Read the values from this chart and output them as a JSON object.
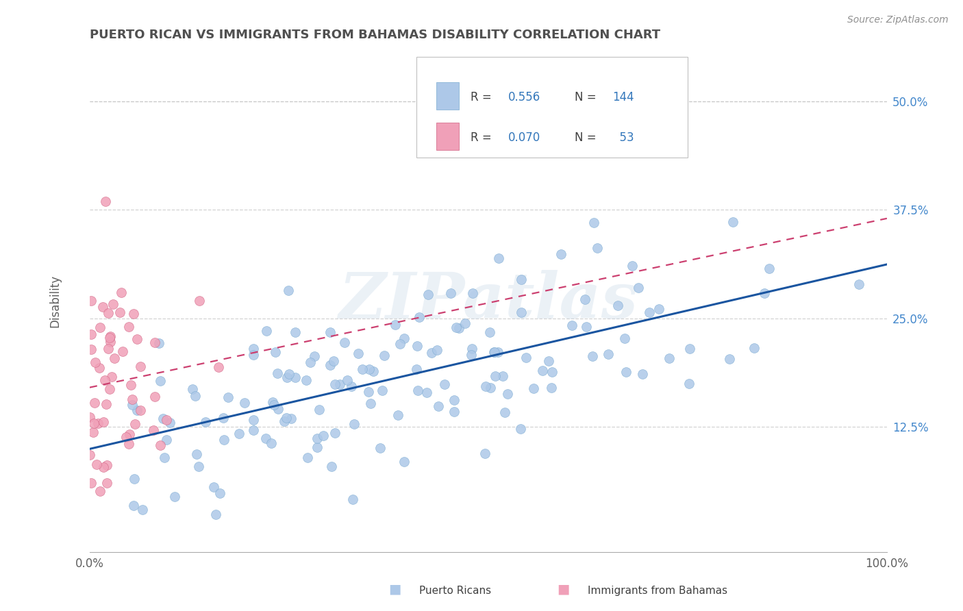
{
  "title": "PUERTO RICAN VS IMMIGRANTS FROM BAHAMAS DISABILITY CORRELATION CHART",
  "source": "Source: ZipAtlas.com",
  "ylabel": "Disability",
  "xlim": [
    0.0,
    1.0
  ],
  "ylim": [
    -0.02,
    0.56
  ],
  "xticks": [
    0.0,
    1.0
  ],
  "xticklabels": [
    "0.0%",
    "100.0%"
  ],
  "yticks": [
    0.125,
    0.25,
    0.375,
    0.5
  ],
  "yticklabels": [
    "12.5%",
    "25.0%",
    "37.5%",
    "50.0%"
  ],
  "series1_color": "#adc8e8",
  "series1_edge": "#7aaad0",
  "series2_color": "#f0a0b8",
  "series2_edge": "#d06080",
  "trendline1_color": "#1a55a0",
  "trendline2_color": "#cc4070",
  "R1": 0.556,
  "N1": 144,
  "R2": 0.07,
  "N2": 53,
  "background_color": "#ffffff",
  "grid_color": "#c8c8c8",
  "watermark_text": "ZIPatlas",
  "title_color": "#505050",
  "axis_label_color": "#606060",
  "ytick_color": "#4488cc",
  "xtick_color": "#606060",
  "legend_label1": "Puerto Ricans",
  "legend_label2": "Immigrants from Bahamas",
  "seed1": 42,
  "seed2": 7
}
